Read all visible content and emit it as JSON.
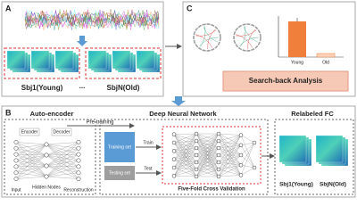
{
  "panel_a": {
    "label": "A",
    "groups": [
      "Sbj1(Young)",
      "SbjN(Old)"
    ],
    "ellipsis": "..."
  },
  "panel_b": {
    "label": "B",
    "pre_training": "Pre-training",
    "autoencoder": {
      "title": "Auto-encoder",
      "encoder": "Encoder",
      "decoder": "Decoder",
      "input": "Input",
      "hidden": "Hidden Nodes",
      "reconstruction": "Reconstruction"
    },
    "dnn": {
      "title": "Deep Neural Network",
      "training_set": "Training set",
      "testing_set": "Testing set",
      "train": "Train",
      "test": "Test",
      "validation": "Five-Fold Cross Validation"
    },
    "relabeled": {
      "title": "Relabeled FC",
      "groups": [
        "Sbj1(Young)",
        "SbjN(Old)"
      ]
    }
  },
  "panel_c": {
    "label": "C",
    "bars": [
      "Young",
      "Old"
    ],
    "analysis": "Search-back Analysis"
  }
}
